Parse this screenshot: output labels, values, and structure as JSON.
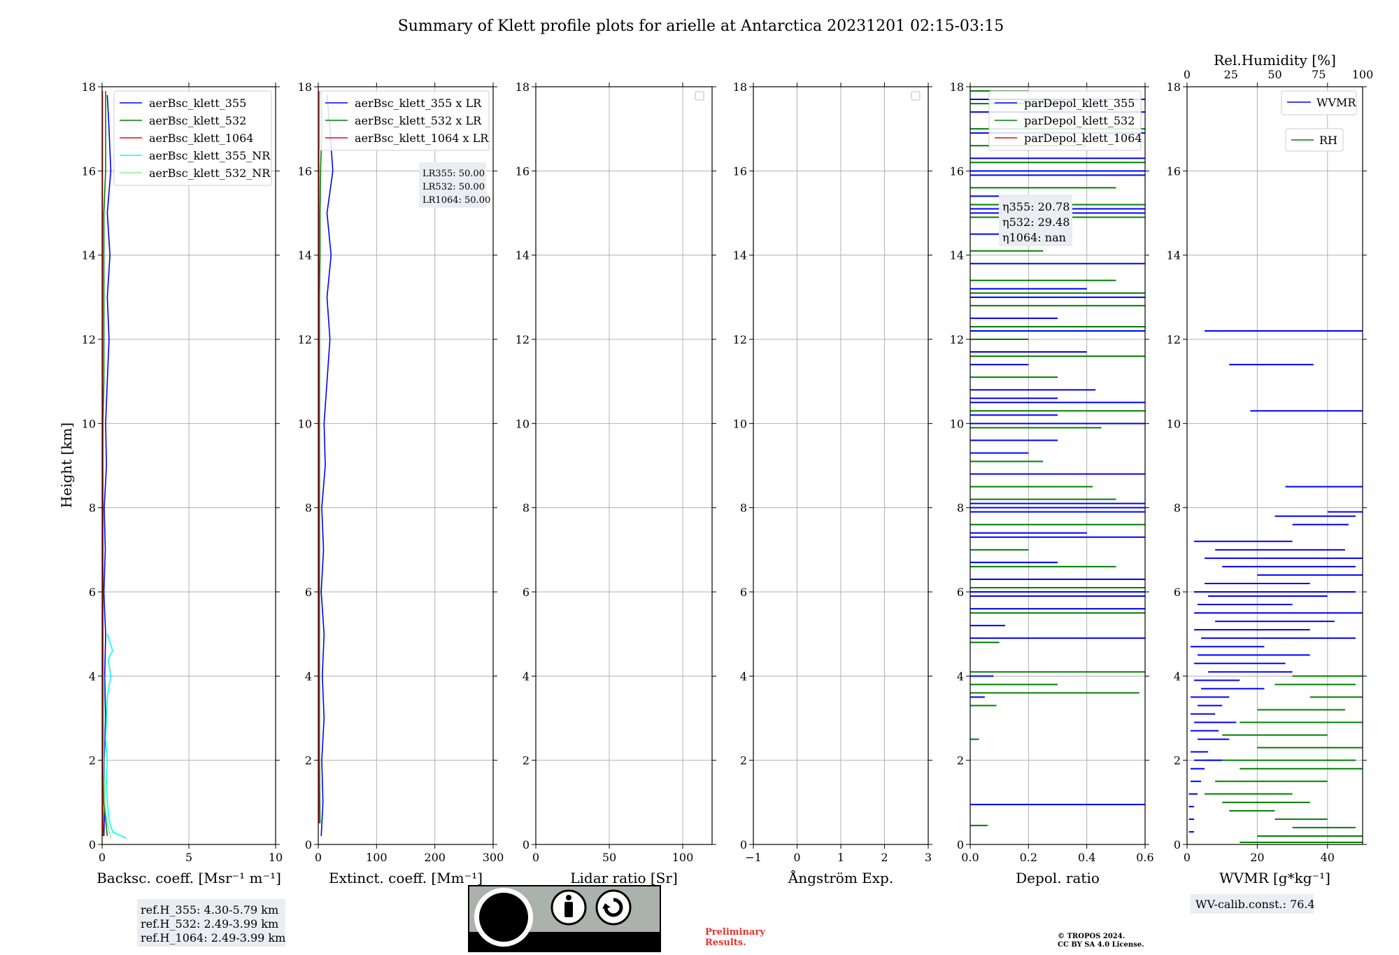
{
  "title": "Summary of Klett profile plots for arielle at Antarctica 20231201 02:15-03:15",
  "chart_data": [
    {
      "type": "line",
      "xlabel": "Backsc. coeff. [Msr⁻¹ m⁻¹]",
      "ylabel": "Height [km]",
      "xlim": [
        0,
        10
      ],
      "ylim": [
        0,
        18
      ],
      "xticks": [
        "0",
        "5",
        "10"
      ],
      "yticks": [
        "0",
        "2",
        "4",
        "6",
        "8",
        "10",
        "12",
        "14",
        "16",
        "18"
      ],
      "grid": true,
      "legend_position": "top-right",
      "series": [
        {
          "name": "aerBsc_klett_355",
          "color": "#0000ff",
          "x": [
            0.1,
            0.15,
            0.12,
            0.2,
            0.15,
            0.2,
            0.1,
            0.18,
            0.12,
            0.25,
            0.2,
            0.3,
            0.4,
            0.3,
            0.45,
            0.3,
            0.5,
            0.4,
            0.3
          ],
          "y": [
            0.2,
            1,
            2,
            3,
            4,
            5,
            6,
            7,
            8,
            9,
            10,
            11,
            12,
            13,
            14,
            15,
            16,
            17,
            17.8
          ]
        },
        {
          "name": "aerBsc_klett_532",
          "color": "#008000",
          "x": [
            0.3,
            0.1,
            0.05,
            0.05,
            0.05,
            0.05,
            0.05,
            0.05,
            0.05,
            0.05,
            0.05,
            0.1,
            0.1,
            0.1,
            0.1,
            0.1,
            0.2,
            0.2
          ],
          "y": [
            0.2,
            1,
            2,
            3,
            4,
            5,
            6,
            7,
            8,
            9,
            10,
            11,
            12,
            13,
            14,
            15,
            16,
            17.9
          ]
        },
        {
          "name": "aerBsc_klett_1064",
          "color": "#ff0000",
          "x": [
            0.05,
            0.02,
            0.02,
            0.02,
            0.02,
            0.02,
            0.02,
            0.02
          ],
          "y": [
            0.2,
            2,
            5,
            8,
            11,
            14,
            16,
            17.9
          ]
        },
        {
          "name": "aerBsc_klett_355_NR",
          "color": "#00ffff",
          "x": [
            1.4,
            0.6,
            0.4,
            0.3,
            0.25,
            0.3,
            0.2,
            0.25,
            0.3,
            0.5,
            0.35,
            0.6,
            0.3
          ],
          "y": [
            0.15,
            0.3,
            0.6,
            1,
            1.5,
            2,
            2.5,
            3,
            3.5,
            4,
            4.4,
            4.6,
            5
          ]
        },
        {
          "name": "aerBsc_klett_532_NR",
          "color": "#90ee90",
          "x": [
            0.5,
            0.3,
            0.15,
            0.1,
            0.1,
            0.1
          ],
          "y": [
            0.15,
            0.5,
            1,
            2,
            3,
            4
          ]
        }
      ],
      "ref_heights": [
        "ref.H_355: 4.30-5.79 km",
        "ref.H_532: 2.49-3.99 km",
        "ref.H_1064: 2.49-3.99 km"
      ]
    },
    {
      "type": "line",
      "xlabel": "Extinct. coeff. [Mm⁻¹]",
      "xlim": [
        0,
        300
      ],
      "ylim": [
        0,
        18
      ],
      "xticks": [
        "0",
        "100",
        "200",
        "300"
      ],
      "yticks": [
        "0",
        "2",
        "4",
        "6",
        "8",
        "10",
        "12",
        "14",
        "16",
        "18"
      ],
      "grid": true,
      "legend_position": "top-right",
      "series": [
        {
          "name": "aerBsc_klett_355 x LR",
          "color": "#0000ff",
          "x": [
            5,
            8,
            6,
            10,
            7,
            10,
            5,
            9,
            6,
            12,
            10,
            15,
            20,
            15,
            22,
            15,
            25,
            20,
            15
          ],
          "y": [
            0.2,
            1,
            2,
            3,
            4,
            5,
            6,
            7,
            8,
            9,
            10,
            11,
            12,
            13,
            14,
            15,
            16,
            17,
            17.8
          ]
        },
        {
          "name": "aerBsc_klett_532 x LR",
          "color": "#008000",
          "x": [
            3,
            2,
            2,
            2,
            2,
            2,
            2,
            2,
            3,
            3,
            4,
            5,
            6,
            5
          ],
          "y": [
            0.5,
            2,
            4,
            6,
            8,
            10,
            12,
            13,
            14,
            15,
            16,
            16.5,
            17,
            17.9
          ]
        },
        {
          "name": "aerBsc_klett_1064 x LR",
          "color": "#ff0000",
          "x": [
            1,
            1,
            1,
            1,
            1
          ],
          "y": [
            0.5,
            5,
            10,
            15,
            17.9
          ]
        }
      ],
      "lidar_ratios": [
        "LR355: 50.00",
        "LR532: 50.00",
        "LR1064: 50.00"
      ]
    },
    {
      "type": "line",
      "xlabel": "Lidar ratio [Sr]",
      "xlim": [
        0,
        120
      ],
      "ylim": [
        0,
        18
      ],
      "xticks": [
        "0",
        "50",
        "100"
      ],
      "yticks": [
        "0",
        "2",
        "4",
        "6",
        "8",
        "10",
        "12",
        "14",
        "16",
        "18"
      ],
      "grid": true,
      "legend_position": "top-right",
      "series": []
    },
    {
      "type": "line",
      "xlabel": "Ångström Exp.",
      "xlim": [
        -1,
        3
      ],
      "ylim": [
        0,
        18
      ],
      "xticks": [
        "−1",
        "0",
        "1",
        "2",
        "3"
      ],
      "yticks": [
        "0",
        "2",
        "4",
        "6",
        "8",
        "10",
        "12",
        "14",
        "16",
        "18"
      ],
      "grid": true,
      "legend_position": "top-right",
      "series": []
    },
    {
      "type": "line",
      "xlabel": "Depol. ratio",
      "xlim": [
        0,
        0.6
      ],
      "ylim": [
        0,
        18
      ],
      "xticks": [
        "0.0",
        "0.2",
        "0.4",
        "0.6"
      ],
      "yticks": [
        "0",
        "2",
        "4",
        "6",
        "8",
        "10",
        "12",
        "14",
        "16",
        "18"
      ],
      "grid": true,
      "legend_position": "top-right",
      "series": [
        {
          "name": "parDepol_klett_355",
          "color": "#0000ff"
        },
        {
          "name": "parDepol_klett_532",
          "color": "#008000"
        },
        {
          "name": "parDepol_klett_1064",
          "color": "#ff0000"
        }
      ],
      "spikes_355": [
        [
          0.95,
          0.6
        ],
        [
          3.5,
          0.05
        ],
        [
          4.0,
          0.08
        ],
        [
          4.9,
          0.6
        ],
        [
          5.2,
          0.12
        ],
        [
          5.6,
          0.6
        ],
        [
          5.9,
          0.6
        ],
        [
          6.0,
          0.6
        ],
        [
          6.3,
          0.6
        ],
        [
          6.7,
          0.3
        ],
        [
          7.3,
          0.6
        ],
        [
          7.4,
          0.4
        ],
        [
          7.9,
          0.6
        ],
        [
          8.0,
          0.6
        ],
        [
          8.1,
          0.6
        ],
        [
          8.8,
          0.6
        ],
        [
          9.3,
          0.2
        ],
        [
          9.6,
          0.3
        ],
        [
          10.0,
          0.6
        ],
        [
          10.2,
          0.3
        ],
        [
          10.5,
          0.6
        ],
        [
          10.6,
          0.3
        ],
        [
          10.8,
          0.43
        ],
        [
          11.4,
          0.2
        ],
        [
          11.7,
          0.4
        ],
        [
          12.2,
          0.6
        ],
        [
          12.5,
          0.3
        ],
        [
          13.0,
          0.6
        ],
        [
          13.2,
          0.4
        ],
        [
          13.8,
          0.6
        ],
        [
          14.5,
          0.3
        ],
        [
          15.0,
          0.6
        ],
        [
          15.1,
          0.6
        ],
        [
          15.4,
          0.2
        ],
        [
          15.9,
          0.6
        ],
        [
          16.0,
          0.6
        ],
        [
          16.3,
          0.6
        ],
        [
          16.9,
          0.6
        ],
        [
          17.4,
          0.6
        ],
        [
          17.7,
          0.6
        ]
      ],
      "spikes_532": [
        [
          0.45,
          0.06
        ],
        [
          2.5,
          0.03
        ],
        [
          3.3,
          0.09
        ],
        [
          3.6,
          0.58
        ],
        [
          3.8,
          0.3
        ],
        [
          4.1,
          0.6
        ],
        [
          4.8,
          0.1
        ],
        [
          5.5,
          0.6
        ],
        [
          6.1,
          0.6
        ],
        [
          6.6,
          0.5
        ],
        [
          7.0,
          0.2
        ],
        [
          7.6,
          0.6
        ],
        [
          8.2,
          0.5
        ],
        [
          8.5,
          0.42
        ],
        [
          9.1,
          0.25
        ],
        [
          9.9,
          0.45
        ],
        [
          10.3,
          0.6
        ],
        [
          11.1,
          0.3
        ],
        [
          11.6,
          0.6
        ],
        [
          12.0,
          0.2
        ],
        [
          12.3,
          0.6
        ],
        [
          12.8,
          0.6
        ],
        [
          13.1,
          0.6
        ],
        [
          13.4,
          0.5
        ],
        [
          14.1,
          0.25
        ],
        [
          14.9,
          0.6
        ],
        [
          15.2,
          0.6
        ],
        [
          15.6,
          0.5
        ],
        [
          16.2,
          0.6
        ],
        [
          16.6,
          0.4
        ],
        [
          17.0,
          0.6
        ],
        [
          17.6,
          0.3
        ],
        [
          17.9,
          0.2
        ]
      ],
      "eta": [
        "η355: 20.78",
        "η532: 29.48",
        "η1064: nan"
      ]
    },
    {
      "type": "line",
      "xlabel": "WVMR [g*kg⁻¹]",
      "xlim": [
        0,
        50
      ],
      "ylim": [
        0,
        18
      ],
      "xticks": [
        "0",
        "20",
        "40"
      ],
      "yticks": [
        "0",
        "2",
        "4",
        "6",
        "8",
        "10",
        "12",
        "14",
        "16",
        "18"
      ],
      "top_axis_label": "Rel.Humidity [%]",
      "top_xlim": [
        0,
        100
      ],
      "top_xticks": [
        "0",
        "25",
        "50",
        "75",
        "100"
      ],
      "grid": true,
      "legend_position": "top-right",
      "series": [
        {
          "name": "WVMR",
          "color": "#0000ff"
        },
        {
          "name": "RH",
          "color": "#008000"
        }
      ],
      "wvmr_segments": [
        [
          12.2,
          5,
          50
        ],
        [
          11.4,
          12,
          36
        ],
        [
          10.3,
          18,
          50
        ],
        [
          8.5,
          28,
          50
        ],
        [
          7.9,
          40,
          50
        ],
        [
          7.8,
          25,
          48
        ],
        [
          7.6,
          30,
          46
        ],
        [
          7.2,
          2,
          30
        ],
        [
          7.0,
          8,
          45
        ],
        [
          6.8,
          5,
          50
        ],
        [
          6.6,
          10,
          48
        ],
        [
          6.4,
          20,
          50
        ],
        [
          6.2,
          5,
          35
        ],
        [
          6.0,
          2,
          48
        ],
        [
          5.9,
          6,
          40
        ],
        [
          5.7,
          3,
          30
        ],
        [
          5.5,
          2,
          50
        ],
        [
          5.3,
          8,
          42
        ],
        [
          5.1,
          2,
          35
        ],
        [
          4.9,
          4,
          48
        ],
        [
          4.7,
          1,
          22
        ],
        [
          4.5,
          3,
          35
        ],
        [
          4.3,
          2,
          28
        ],
        [
          4.1,
          6,
          30
        ],
        [
          3.9,
          2,
          15
        ],
        [
          3.7,
          4,
          22
        ],
        [
          3.5,
          1,
          12
        ],
        [
          3.3,
          3,
          10
        ],
        [
          3.1,
          1,
          8
        ],
        [
          2.9,
          2,
          14
        ],
        [
          2.7,
          1,
          9
        ],
        [
          2.5,
          3,
          12
        ],
        [
          2.2,
          1,
          6
        ],
        [
          2.0,
          2,
          10
        ],
        [
          1.8,
          1,
          5
        ],
        [
          1.5,
          1,
          4
        ],
        [
          1.2,
          0.5,
          3
        ],
        [
          0.9,
          0.5,
          2
        ],
        [
          0.6,
          0.5,
          2
        ],
        [
          0.3,
          0.5,
          2
        ]
      ],
      "rh_segments": [
        [
          4.0,
          30,
          50
        ],
        [
          3.8,
          25,
          48
        ],
        [
          3.5,
          35,
          50
        ],
        [
          3.2,
          20,
          45
        ],
        [
          2.9,
          15,
          50
        ],
        [
          2.6,
          10,
          40
        ],
        [
          2.3,
          20,
          50
        ],
        [
          2.0,
          5,
          48
        ],
        [
          1.8,
          15,
          50
        ],
        [
          1.5,
          8,
          40
        ],
        [
          1.2,
          5,
          30
        ],
        [
          1.0,
          10,
          35
        ],
        [
          0.8,
          12,
          25
        ],
        [
          0.6,
          25,
          40
        ],
        [
          0.4,
          30,
          48
        ],
        [
          0.2,
          20,
          50
        ],
        [
          0.05,
          15,
          50
        ]
      ]
    }
  ],
  "annotations": {
    "wv_calib": "WV-calib.const.: 76.4",
    "preliminary": "Preliminary\nResults.",
    "copyright": "© TROPOS 2024.\nCC BY SA 4.0 License.",
    "cc_by": "BY",
    "cc_sa": "SA",
    "cc_mark": "cc"
  }
}
